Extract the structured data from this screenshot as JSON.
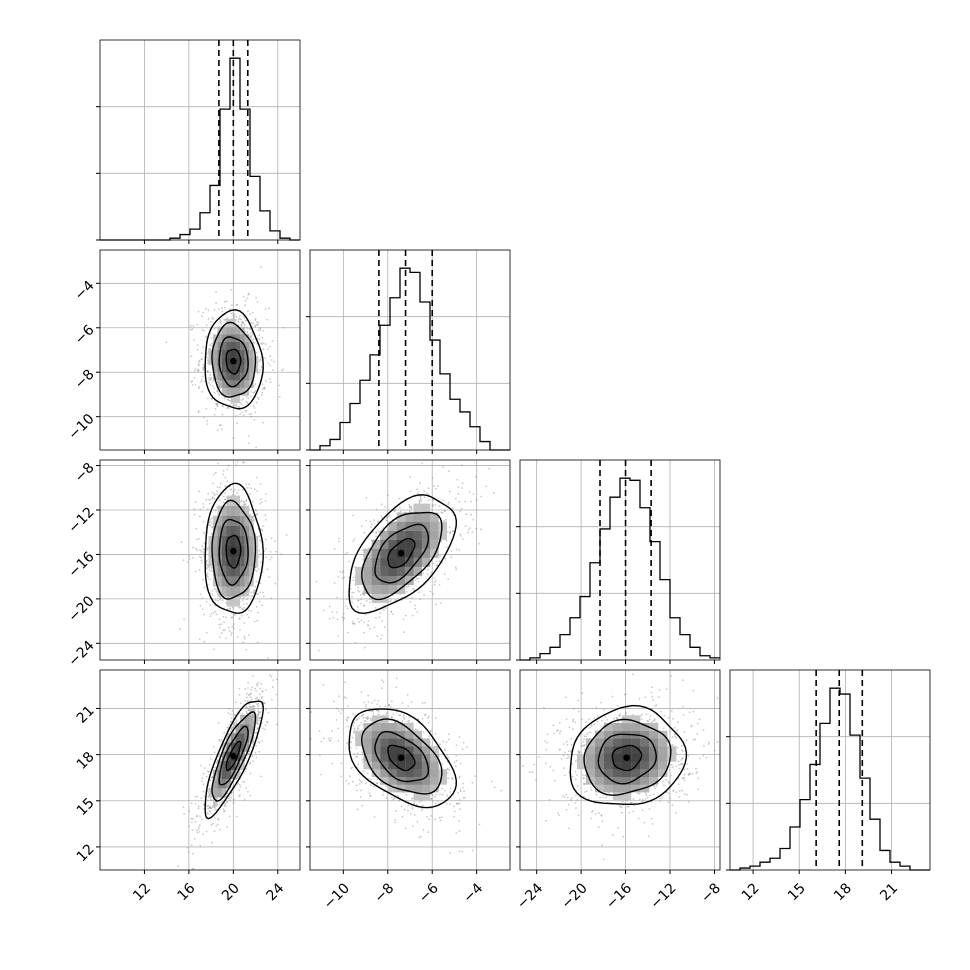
{
  "chart_data": {
    "type": "corner",
    "title": "",
    "grid": true,
    "colors": {
      "ink": "#000000",
      "grid": "#b0b0b0",
      "scatter": "#8a8a8a"
    },
    "params": [
      {
        "range": [
          8,
          26
        ],
        "ticks": [
          12,
          16,
          20,
          24
        ],
        "tick_labels": [
          "12",
          "16",
          "20",
          "24"
        ],
        "quantiles": [
          18.7,
          20.0,
          21.3
        ]
      },
      {
        "range": [
          -11.5,
          -2.5
        ],
        "ticks": [
          -10,
          -8,
          -6,
          -4
        ],
        "tick_labels": [
          "−10",
          "−8",
          "−6",
          "−4"
        ],
        "quantiles": [
          -8.4,
          -7.2,
          -6.0
        ]
      },
      {
        "range": [
          -25.5,
          -7.5
        ],
        "ticks": [
          -24,
          -20,
          -16,
          -12,
          -8
        ],
        "tick_labels": [
          "−24",
          "−20",
          "−16",
          "−12",
          "−8"
        ],
        "quantiles": [
          -18.3,
          -16.0,
          -13.7
        ]
      },
      {
        "range": [
          10.5,
          23.5
        ],
        "ticks": [
          12,
          15,
          18,
          21
        ],
        "tick_labels": [
          "12",
          "15",
          "18",
          "21"
        ],
        "quantiles": [
          16.1,
          17.6,
          19.1
        ]
      }
    ],
    "histograms": [
      {
        "param": 0,
        "bin_edges": [
          8.0,
          8.9,
          9.8,
          10.7,
          11.6,
          12.5,
          13.4,
          14.3,
          15.2,
          16.1,
          17.0,
          17.9,
          18.8,
          19.7,
          20.6,
          21.5,
          22.4,
          23.3,
          24.2,
          25.1,
          26.0
        ],
        "counts": [
          0,
          0,
          0,
          0,
          0,
          0,
          0,
          1,
          3,
          6,
          15,
          30,
          72,
          100,
          72,
          35,
          16,
          5,
          1,
          0
        ]
      },
      {
        "param": 1,
        "bin_edges": [
          -11.5,
          -11.05,
          -10.6,
          -10.15,
          -9.7,
          -9.25,
          -8.8,
          -8.35,
          -7.9,
          -7.45,
          -7.0,
          -6.55,
          -6.1,
          -5.65,
          -5.2,
          -4.75,
          -4.3,
          -3.85,
          -3.4,
          -2.95,
          -2.5
        ],
        "counts": [
          0,
          2,
          5,
          13,
          22,
          33,
          45,
          59,
          72,
          86,
          84,
          70,
          52,
          36,
          24,
          18,
          11,
          4,
          0,
          0
        ]
      },
      {
        "param": 2,
        "bin_edges": [
          -25.5,
          -24.6,
          -23.7,
          -22.8,
          -21.9,
          -21.0,
          -20.1,
          -19.2,
          -18.3,
          -17.4,
          -16.5,
          -15.6,
          -14.7,
          -13.8,
          -12.9,
          -12.0,
          -11.1,
          -10.2,
          -9.3,
          -8.4,
          -7.5
        ],
        "counts": [
          0,
          1,
          3,
          6,
          12,
          20,
          30,
          46,
          62,
          77,
          86,
          85,
          72,
          56,
          38,
          20,
          12,
          6,
          2,
          1
        ]
      },
      {
        "param": 3,
        "bin_edges": [
          10.5,
          11.15,
          11.8,
          12.45,
          13.1,
          13.75,
          14.4,
          15.05,
          15.7,
          16.35,
          17.0,
          17.65,
          18.3,
          18.95,
          19.6,
          20.25,
          20.9,
          21.55,
          22.2,
          22.85,
          23.5
        ],
        "counts": [
          0,
          1,
          2,
          4,
          6,
          11,
          22,
          36,
          54,
          75,
          93,
          90,
          69,
          47,
          26,
          10,
          4,
          2,
          0,
          0
        ]
      }
    ],
    "pairs": [
      {
        "x": 0,
        "y": 1,
        "center": [
          20.0,
          -7.5
        ],
        "sd": [
          1.3,
          1.1
        ],
        "rho": -0.05
      },
      {
        "x": 0,
        "y": 2,
        "center": [
          20.0,
          -15.7
        ],
        "sd": [
          1.3,
          2.9
        ],
        "rho": 0.0
      },
      {
        "x": 1,
        "y": 2,
        "center": [
          -7.4,
          -15.9
        ],
        "sd": [
          1.2,
          2.6
        ],
        "rho": 0.55
      },
      {
        "x": 0,
        "y": 3,
        "center": [
          20.0,
          17.9
        ],
        "sd": [
          1.3,
          1.9
        ],
        "rho": 0.82
      },
      {
        "x": 1,
        "y": 3,
        "center": [
          -7.4,
          17.8
        ],
        "sd": [
          1.2,
          1.6
        ],
        "rho": -0.45
      },
      {
        "x": 2,
        "y": 3,
        "center": [
          -15.9,
          17.8
        ],
        "sd": [
          2.6,
          1.6
        ],
        "rho": 0.1
      }
    ]
  }
}
